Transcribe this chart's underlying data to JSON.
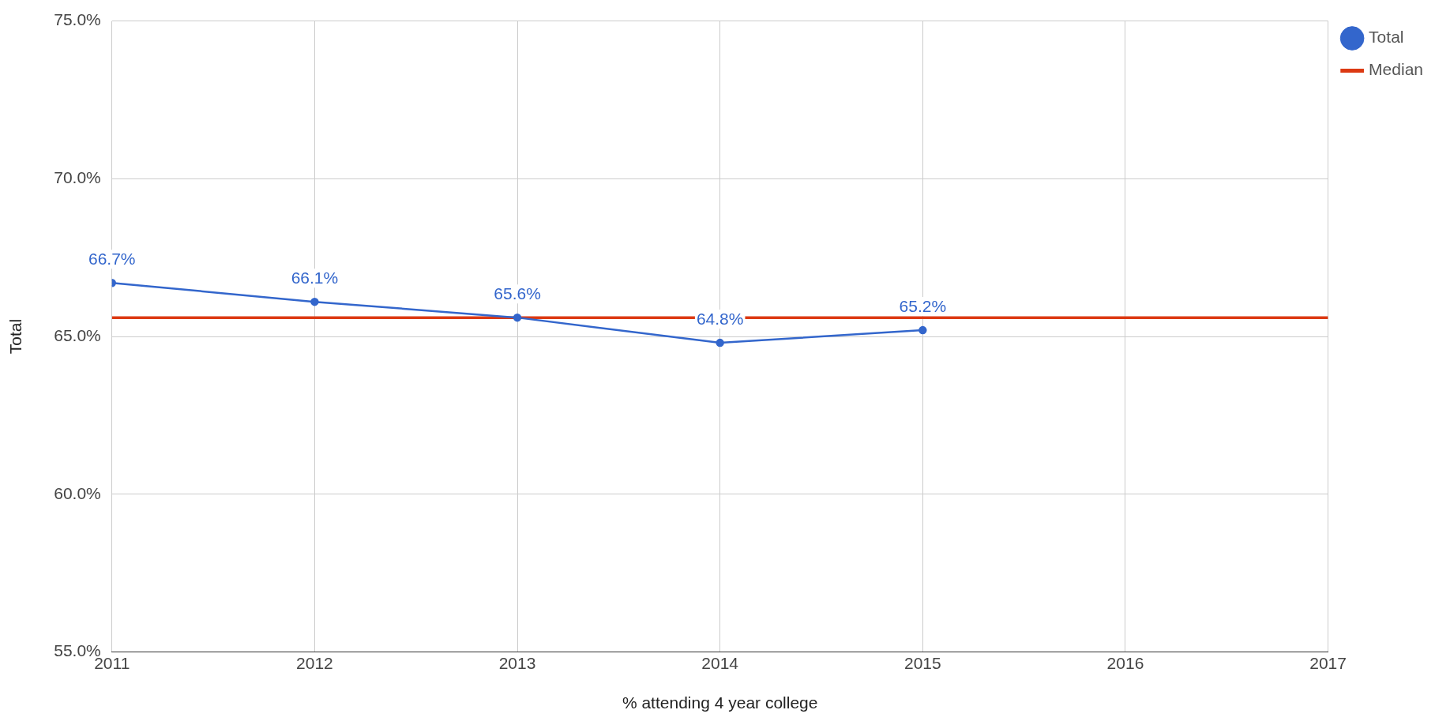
{
  "chart_data": {
    "type": "line",
    "xlabel": "% attending 4 year college",
    "ylabel": "Total",
    "x": [
      2011,
      2012,
      2013,
      2014,
      2015
    ],
    "series": [
      {
        "name": "Total",
        "color": "#3366cc",
        "values": [
          66.7,
          66.1,
          65.6,
          64.8,
          65.2
        ],
        "marker": "circle",
        "value_labels": [
          "66.7%",
          "66.1%",
          "65.6%",
          "64.8%",
          "65.2%"
        ]
      },
      {
        "name": "Median",
        "color": "#dc3912",
        "x": [
          2011,
          2017
        ],
        "values": [
          65.6,
          65.6
        ],
        "marker": "none"
      }
    ],
    "xlim": [
      2011,
      2017
    ],
    "xticks": [
      2011,
      2012,
      2013,
      2014,
      2015,
      2016,
      2017
    ],
    "ylim": [
      55,
      75
    ],
    "yticks": [
      {
        "value": 55,
        "label": "55.0%"
      },
      {
        "value": 60,
        "label": "60.0%"
      },
      {
        "value": 65,
        "label": "65.0%"
      },
      {
        "value": 70,
        "label": "70.0%"
      },
      {
        "value": 75,
        "label": "75.0%"
      }
    ],
    "grid": true,
    "legend": "top right",
    "line_style": "solid"
  }
}
